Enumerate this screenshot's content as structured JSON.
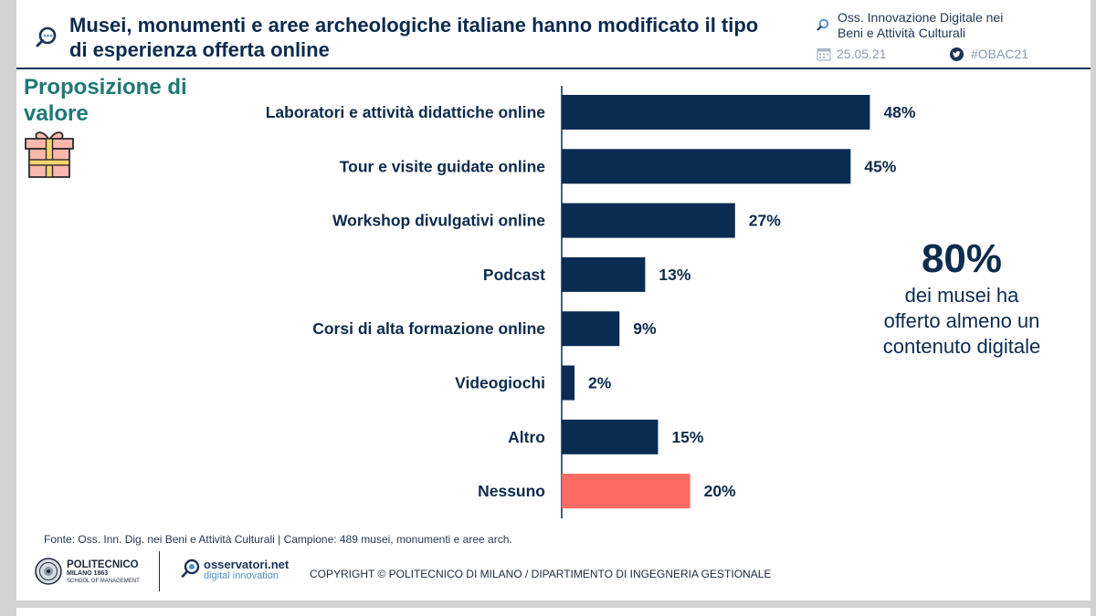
{
  "header": {
    "title_line1": "Musei, monumenti e aree archeologiche italiane hanno modificato il tipo",
    "title_line2": "di esperienza offerta online",
    "org_line1": "Oss. Innovazione Digitale nei",
    "org_line2": "Beni e Attività Culturali",
    "date": "25.05.21",
    "hashtag": "#OBAC21"
  },
  "sidebar": {
    "section_line1": "Proposizione di",
    "section_line2": "valore"
  },
  "chart_data": {
    "type": "bar",
    "orientation": "horizontal",
    "title": "",
    "xlabel": "",
    "ylabel": "",
    "xlim": [
      0,
      100
    ],
    "unit": "%",
    "categories": [
      "Laboratori e attività didattiche online",
      "Tour e visite guidate online",
      "Workshop divulgativi online",
      "Podcast",
      "Corsi di alta formazione online",
      "Videogiochi",
      "Altro",
      "Nessuno"
    ],
    "values": [
      48,
      45,
      27,
      13,
      9,
      2,
      15,
      20
    ],
    "value_labels": [
      "48%",
      "45%",
      "27%",
      "13%",
      "9%",
      "2%",
      "15%",
      "20%"
    ],
    "highlight_index": 7,
    "colors": {
      "bar": "#0a2b52",
      "highlight": "#fe6b63",
      "text": "#0c2b4e"
    }
  },
  "callout": {
    "value": "80%",
    "line1": "dei musei ha",
    "line2": "offerto almeno un",
    "line3": "contenuto digitale"
  },
  "footer": {
    "source": "Fonte: Oss. Inn. Dig. nei Beni e Attività Culturali | Campione: 489 musei, monumenti e aree arch.",
    "polimi_name": "POLITECNICO",
    "polimi_sub1": "MILANO 1863",
    "polimi_sub2": "SCHOOL OF MANAGEMENT",
    "osserv_name": "osservatori.net",
    "osserv_sub": "digital innovation",
    "copyright": "COPYRIGHT © POLITECNICO DI MILANO / DIPARTIMENTO DI INGEGNERIA GESTIONALE"
  },
  "colors": {
    "title": "#0c2b4e",
    "accent_teal": "#1d7875",
    "muted": "#8a9bb0"
  },
  "icons": {
    "title": "magnifier-chat-icon",
    "org": "magnifier-icon",
    "date": "calendar-icon",
    "hashtag": "twitter-icon",
    "section": "gift-icon"
  }
}
